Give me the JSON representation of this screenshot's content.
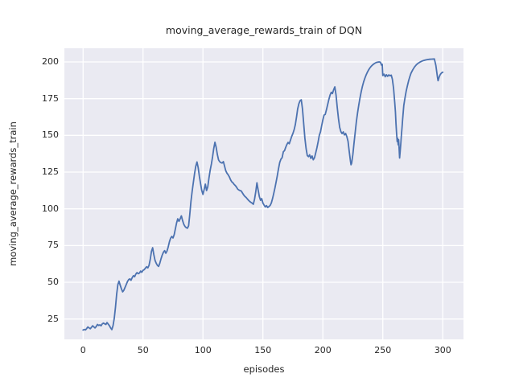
{
  "figure": {
    "title": "moving_average_rewards_train of DQN",
    "x_axis_label": "episodes",
    "y_axis_label": "moving_average_rewards_train"
  },
  "colors": {
    "line": "#4c72b0",
    "plot_background": "#eaeaf2",
    "gridline": "#ffffff",
    "text": "#262626",
    "figure_background": "#ffffff"
  },
  "chart_data": {
    "type": "line",
    "title": "moving_average_rewards_train of DQN",
    "xlabel": "episodes",
    "ylabel": "moving_average_rewards_train",
    "legend": "none",
    "grid": "on",
    "style": "seaborn-darkgrid",
    "x_ticks": [
      0,
      50,
      100,
      150,
      200,
      250,
      300
    ],
    "y_ticks": [
      25,
      50,
      75,
      100,
      125,
      150,
      175,
      200
    ],
    "xlim": [
      -15.6,
      317.3
    ],
    "ylim": [
      11.15,
      209.3
    ],
    "series_name": "moving_average_rewards_train",
    "points": [
      [
        0,
        17.5
      ],
      [
        1,
        17.9
      ],
      [
        2,
        17.6
      ],
      [
        3,
        18.5
      ],
      [
        4,
        19.6
      ],
      [
        5,
        18.9
      ],
      [
        6,
        18.4
      ],
      [
        7,
        19.4
      ],
      [
        8,
        20.4
      ],
      [
        9,
        19.6
      ],
      [
        10,
        18.9
      ],
      [
        11,
        19.9
      ],
      [
        12,
        21.3
      ],
      [
        13,
        20.6
      ],
      [
        14,
        21.0
      ],
      [
        15,
        20.4
      ],
      [
        16,
        21.7
      ],
      [
        17,
        22.2
      ],
      [
        18,
        21.7
      ],
      [
        19,
        21.3
      ],
      [
        20,
        22.6
      ],
      [
        21,
        21.5
      ],
      [
        22,
        20.4
      ],
      [
        23,
        18.9
      ],
      [
        24,
        17.8
      ],
      [
        25,
        20.5
      ],
      [
        26,
        25.5
      ],
      [
        27,
        33.0
      ],
      [
        28,
        42.0
      ],
      [
        29,
        48.5
      ],
      [
        30,
        50.8
      ],
      [
        31,
        48.0
      ],
      [
        32,
        45.5
      ],
      [
        33,
        43.5
      ],
      [
        34,
        44.6
      ],
      [
        35,
        46.5
      ],
      [
        36,
        48.5
      ],
      [
        37,
        50.5
      ],
      [
        38,
        51.8
      ],
      [
        39,
        52.3
      ],
      [
        40,
        51.4
      ],
      [
        41,
        53.2
      ],
      [
        42,
        54.5
      ],
      [
        43,
        53.8
      ],
      [
        44,
        55.6
      ],
      [
        45,
        56.6
      ],
      [
        46,
        55.8
      ],
      [
        47,
        56.3
      ],
      [
        48,
        57.6
      ],
      [
        49,
        56.8
      ],
      [
        50,
        58.1
      ],
      [
        51,
        58.6
      ],
      [
        52,
        59.6
      ],
      [
        53,
        60.6
      ],
      [
        54,
        59.8
      ],
      [
        55,
        61.5
      ],
      [
        56,
        65.5
      ],
      [
        57,
        71.0
      ],
      [
        58,
        73.5
      ],
      [
        59,
        69.0
      ],
      [
        60,
        65.0
      ],
      [
        61,
        63.0
      ],
      [
        62,
        61.5
      ],
      [
        63,
        60.8
      ],
      [
        64,
        63.0
      ],
      [
        65,
        66.0
      ],
      [
        66,
        68.5
      ],
      [
        67,
        70.5
      ],
      [
        68,
        71.5
      ],
      [
        69,
        69.8
      ],
      [
        70,
        71.2
      ],
      [
        71,
        74.0
      ],
      [
        72,
        77.5
      ],
      [
        73,
        80.0
      ],
      [
        74,
        81.2
      ],
      [
        75,
        80.2
      ],
      [
        76,
        82.5
      ],
      [
        77,
        86.5
      ],
      [
        78,
        90.5
      ],
      [
        79,
        93.2
      ],
      [
        80,
        91.5
      ],
      [
        81,
        93.2
      ],
      [
        82,
        95.2
      ],
      [
        83,
        92.0
      ],
      [
        84,
        89.5
      ],
      [
        85,
        88.0
      ],
      [
        86,
        87.2
      ],
      [
        87,
        86.8
      ],
      [
        88,
        88.5
      ],
      [
        89,
        96.0
      ],
      [
        90,
        105.0
      ],
      [
        91,
        112.0
      ],
      [
        92,
        118.0
      ],
      [
        93,
        124.0
      ],
      [
        94,
        129.0
      ],
      [
        95,
        131.9
      ],
      [
        96,
        128.0
      ],
      [
        97,
        122.0
      ],
      [
        98,
        117.0
      ],
      [
        99,
        112.5
      ],
      [
        100,
        109.8
      ],
      [
        101,
        113.2
      ],
      [
        102,
        116.8
      ],
      [
        103,
        112.4
      ],
      [
        104,
        115.0
      ],
      [
        105,
        121.0
      ],
      [
        106,
        126.3
      ],
      [
        107,
        130.5
      ],
      [
        108,
        135.5
      ],
      [
        109,
        141.0
      ],
      [
        110,
        145.3
      ],
      [
        111,
        142.0
      ],
      [
        112,
        137.0
      ],
      [
        113,
        133.3
      ],
      [
        114,
        132.0
      ],
      [
        115,
        131.4
      ],
      [
        116,
        131.2
      ],
      [
        117,
        132.1
      ],
      [
        118,
        129.0
      ],
      [
        119,
        126.0
      ],
      [
        120,
        124.3
      ],
      [
        121,
        123.2
      ],
      [
        122,
        121.8
      ],
      [
        123,
        119.8
      ],
      [
        124,
        118.4
      ],
      [
        125,
        117.7
      ],
      [
        126,
        116.6
      ],
      [
        127,
        115.8
      ],
      [
        128,
        114.7
      ],
      [
        129,
        113.4
      ],
      [
        130,
        112.8
      ],
      [
        131,
        112.4
      ],
      [
        132,
        112.1
      ],
      [
        133,
        110.7
      ],
      [
        134,
        109.4
      ],
      [
        135,
        108.4
      ],
      [
        136,
        107.7
      ],
      [
        137,
        106.7
      ],
      [
        138,
        105.8
      ],
      [
        139,
        105.0
      ],
      [
        140,
        104.4
      ],
      [
        141,
        103.9
      ],
      [
        142,
        103.1
      ],
      [
        143,
        106.5
      ],
      [
        144,
        111.5
      ],
      [
        145,
        117.7
      ],
      [
        146,
        112.8
      ],
      [
        147,
        108.3
      ],
      [
        148,
        105.8
      ],
      [
        149,
        107.0
      ],
      [
        150,
        104.0
      ],
      [
        151,
        102.5
      ],
      [
        152,
        101.3
      ],
      [
        153,
        102.2
      ],
      [
        154,
        100.9
      ],
      [
        155,
        101.6
      ],
      [
        156,
        102.3
      ],
      [
        157,
        104.0
      ],
      [
        158,
        107.0
      ],
      [
        159,
        110.3
      ],
      [
        160,
        114.0
      ],
      [
        161,
        118.2
      ],
      [
        162,
        122.5
      ],
      [
        163,
        127.3
      ],
      [
        164,
        131.5
      ],
      [
        165,
        133.8
      ],
      [
        166,
        134.8
      ],
      [
        167,
        138.8
      ],
      [
        168,
        139.6
      ],
      [
        169,
        141.8
      ],
      [
        170,
        143.8
      ],
      [
        171,
        145.2
      ],
      [
        172,
        144.3
      ],
      [
        173,
        146.8
      ],
      [
        174,
        149.3
      ],
      [
        175,
        151.3
      ],
      [
        176,
        153.8
      ],
      [
        177,
        157.3
      ],
      [
        178,
        162.5
      ],
      [
        179,
        168.0
      ],
      [
        180,
        171.5
      ],
      [
        181,
        173.6
      ],
      [
        182,
        174.2
      ],
      [
        183,
        168.0
      ],
      [
        184,
        158.0
      ],
      [
        185,
        148.0
      ],
      [
        186,
        141.0
      ],
      [
        187,
        136.2
      ],
      [
        188,
        135.5
      ],
      [
        189,
        136.8
      ],
      [
        190,
        134.3
      ],
      [
        191,
        136.0
      ],
      [
        192,
        133.4
      ],
      [
        193,
        134.7
      ],
      [
        194,
        138.0
      ],
      [
        195,
        141.5
      ],
      [
        196,
        145.5
      ],
      [
        197,
        150.0
      ],
      [
        198,
        152.5
      ],
      [
        199,
        156.5
      ],
      [
        200,
        160.5
      ],
      [
        201,
        163.8
      ],
      [
        202,
        164.3
      ],
      [
        203,
        167.5
      ],
      [
        204,
        171.0
      ],
      [
        205,
        174.5
      ],
      [
        206,
        177.5
      ],
      [
        207,
        179.3
      ],
      [
        208,
        178.5
      ],
      [
        209,
        181.0
      ],
      [
        210,
        183.0
      ],
      [
        211,
        177.5
      ],
      [
        212,
        169.0
      ],
      [
        213,
        161.5
      ],
      [
        214,
        155.5
      ],
      [
        215,
        152.6
      ],
      [
        216,
        151.2
      ],
      [
        217,
        152.4
      ],
      [
        218,
        150.3
      ],
      [
        219,
        151.3
      ],
      [
        220,
        149.2
      ],
      [
        221,
        146.0
      ],
      [
        222,
        139.0
      ],
      [
        223,
        132.5
      ],
      [
        223.5,
        130.0
      ],
      [
        224,
        131.0
      ],
      [
        225,
        137.0
      ],
      [
        226,
        145.0
      ],
      [
        227,
        152.5
      ],
      [
        228,
        159.5
      ],
      [
        229,
        165.5
      ],
      [
        230,
        170.8
      ],
      [
        231,
        175.5
      ],
      [
        232,
        179.8
      ],
      [
        233,
        183.4
      ],
      [
        234,
        186.4
      ],
      [
        235,
        188.9
      ],
      [
        236,
        191.0
      ],
      [
        237,
        192.8
      ],
      [
        238,
        194.3
      ],
      [
        239,
        195.6
      ],
      [
        240,
        196.7
      ],
      [
        241,
        197.6
      ],
      [
        242,
        198.3
      ],
      [
        243,
        198.9
      ],
      [
        244,
        199.4
      ],
      [
        245,
        199.7
      ],
      [
        246,
        199.9
      ],
      [
        247,
        200.0
      ],
      [
        248,
        199.8
      ],
      [
        249,
        197.8
      ],
      [
        249.5,
        198.4
      ],
      [
        250,
        190.7
      ],
      [
        251,
        191.7
      ],
      [
        252,
        189.9
      ],
      [
        253,
        191.3
      ],
      [
        254,
        190.2
      ],
      [
        255,
        191.2
      ],
      [
        256,
        190.5
      ],
      [
        257,
        191.0
      ],
      [
        258,
        188.2
      ],
      [
        259,
        182.0
      ],
      [
        260,
        172.0
      ],
      [
        260.5,
        166.0
      ],
      [
        261,
        158.0
      ],
      [
        261.5,
        151.0
      ],
      [
        262,
        145.8
      ],
      [
        262.4,
        148.0
      ],
      [
        262.8,
        143.6
      ],
      [
        263.2,
        147.0
      ],
      [
        263.6,
        140.8
      ],
      [
        264,
        134.6
      ],
      [
        264.5,
        139.0
      ],
      [
        265,
        144.5
      ],
      [
        265.5,
        150.0
      ],
      [
        266,
        155.3
      ],
      [
        266.5,
        160.5
      ],
      [
        267,
        165.8
      ],
      [
        267.5,
        170.3
      ],
      [
        268.5,
        175.6
      ],
      [
        269.5,
        180.2
      ],
      [
        270.5,
        183.8
      ],
      [
        271.5,
        187.2
      ],
      [
        272.5,
        189.9
      ],
      [
        273.5,
        192.2
      ],
      [
        275,
        194.7
      ],
      [
        276.5,
        196.6
      ],
      [
        278,
        198.0
      ],
      [
        279.5,
        199.1
      ],
      [
        281,
        199.9
      ],
      [
        282.5,
        200.5
      ],
      [
        284,
        201.0
      ],
      [
        285.5,
        201.3
      ],
      [
        287,
        201.6
      ],
      [
        289,
        201.8
      ],
      [
        291,
        201.9
      ],
      [
        293,
        202.0
      ],
      [
        294.3,
        197.5
      ],
      [
        295,
        193.0
      ],
      [
        295.6,
        189.5
      ],
      [
        296.1,
        187.2
      ],
      [
        297,
        189.8
      ],
      [
        298,
        191.5
      ],
      [
        299,
        192.5
      ],
      [
        300,
        193.0
      ]
    ]
  }
}
